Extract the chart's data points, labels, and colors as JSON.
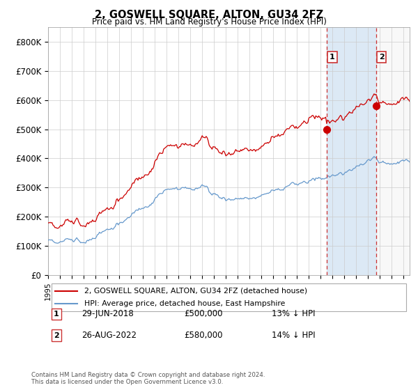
{
  "title": "2, GOSWELL SQUARE, ALTON, GU34 2FZ",
  "subtitle": "Price paid vs. HM Land Registry's House Price Index (HPI)",
  "ylim": [
    0,
    850000
  ],
  "yticks": [
    0,
    100000,
    200000,
    300000,
    400000,
    500000,
    600000,
    700000,
    800000
  ],
  "ytick_labels": [
    "£0",
    "£100K",
    "£200K",
    "£300K",
    "£400K",
    "£500K",
    "£600K",
    "£700K",
    "£800K"
  ],
  "legend_line1": "2, GOSWELL SQUARE, ALTON, GU34 2FZ (detached house)",
  "legend_line2": "HPI: Average price, detached house, East Hampshire",
  "annotation1_label": "1",
  "annotation1_date": "29-JUN-2018",
  "annotation1_price": "£500,000",
  "annotation1_hpi": "13% ↓ HPI",
  "annotation2_label": "2",
  "annotation2_date": "26-AUG-2022",
  "annotation2_price": "£580,000",
  "annotation2_hpi": "14% ↓ HPI",
  "footer": "Contains HM Land Registry data © Crown copyright and database right 2024.\nThis data is licensed under the Open Government Licence v3.0.",
  "hpi_color": "#6699cc",
  "price_color": "#cc0000",
  "vline_color": "#cc3333",
  "background_color": "#ffffff",
  "grid_color": "#cccccc",
  "sale1_x": 2018.5,
  "sale1_y": 500000,
  "sale2_x": 2022.65,
  "sale2_y": 580000,
  "xmin": 1995,
  "xmax": 2025.5
}
